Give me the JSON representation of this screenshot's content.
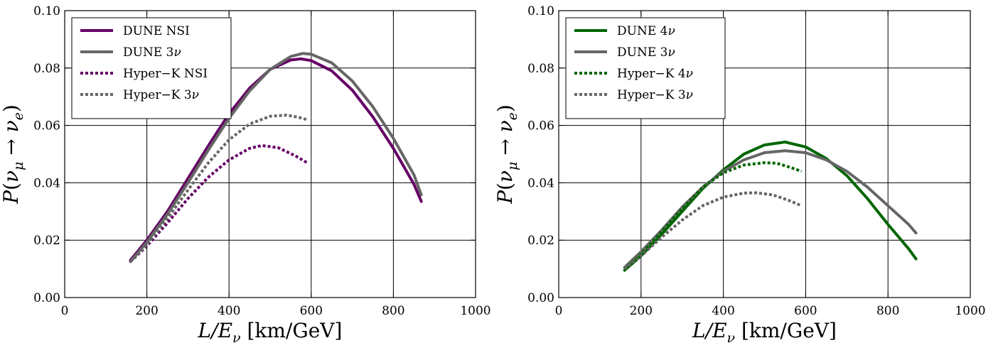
{
  "chart_data": [
    {
      "type": "line",
      "xlabel": "L/E_ν [km/GeV]",
      "ylabel": "P(ν_μ → ν_e)",
      "xlim": [
        0,
        1000
      ],
      "ylim": [
        0,
        0.1
      ],
      "xticks": [
        "0",
        "200",
        "400",
        "600",
        "800",
        "1000"
      ],
      "yticks": [
        "0.00",
        "0.02",
        "0.04",
        "0.06",
        "0.08",
        "0.10"
      ],
      "grid": true,
      "legend_position": "top-left",
      "series": [
        {
          "name": "DUNE NSI",
          "color": "#660066",
          "style": "solid",
          "x": [
            160,
            200,
            250,
            300,
            350,
            400,
            450,
            500,
            550,
            575,
            600,
            650,
            700,
            750,
            800,
            850,
            868
          ],
          "y": [
            0.013,
            0.02,
            0.03,
            0.0415,
            0.053,
            0.064,
            0.073,
            0.0795,
            0.0828,
            0.0832,
            0.0826,
            0.079,
            0.0723,
            0.063,
            0.052,
            0.0395,
            0.0335
          ]
        },
        {
          "name": "DUNE 3ν",
          "color": "#666666",
          "style": "solid",
          "x": [
            160,
            200,
            250,
            300,
            350,
            400,
            450,
            500,
            550,
            580,
            600,
            650,
            700,
            750,
            800,
            850,
            868
          ],
          "y": [
            0.0125,
            0.0193,
            0.029,
            0.04,
            0.0515,
            0.0625,
            0.072,
            0.0795,
            0.084,
            0.0851,
            0.0848,
            0.0818,
            0.0755,
            0.0665,
            0.0555,
            0.0428,
            0.0358
          ]
        },
        {
          "name": "Hyper−K NSI",
          "color": "#660066",
          "style": "dotted",
          "x": [
            160,
            200,
            250,
            300,
            350,
            400,
            450,
            480,
            520,
            560,
            590
          ],
          "y": [
            0.0125,
            0.018,
            0.026,
            0.0345,
            0.042,
            0.048,
            0.052,
            0.053,
            0.0522,
            0.0495,
            0.047
          ]
        },
        {
          "name": "Hyper−K 3ν",
          "color": "#666666",
          "style": "dotted",
          "x": [
            160,
            200,
            250,
            300,
            350,
            400,
            450,
            500,
            540,
            570,
            590
          ],
          "y": [
            0.0125,
            0.0185,
            0.0275,
            0.0375,
            0.047,
            0.055,
            0.0605,
            0.0632,
            0.0636,
            0.0628,
            0.062
          ]
        }
      ]
    },
    {
      "type": "line",
      "xlabel": "L/E_ν [km/GeV]",
      "ylabel": "P(ν_μ → ν_e)",
      "xlim": [
        0,
        1000
      ],
      "ylim": [
        0,
        0.1
      ],
      "xticks": [
        "0",
        "200",
        "400",
        "600",
        "800",
        "1000"
      ],
      "yticks": [
        "0.00",
        "0.02",
        "0.04",
        "0.06",
        "0.08",
        "0.10"
      ],
      "grid": true,
      "legend_position": "top-left",
      "series": [
        {
          "name": "DUNE 4ν",
          "color": "#006600",
          "style": "solid",
          "x": [
            160,
            200,
            250,
            300,
            350,
            400,
            450,
            500,
            550,
            600,
            650,
            700,
            750,
            800,
            850,
            868
          ],
          "y": [
            0.0095,
            0.0145,
            0.022,
            0.03,
            0.038,
            0.0445,
            0.05,
            0.0532,
            0.0542,
            0.0525,
            0.0485,
            0.0425,
            0.0345,
            0.0255,
            0.017,
            0.0135
          ]
        },
        {
          "name": "DUNE 3ν",
          "color": "#666666",
          "style": "solid",
          "x": [
            160,
            200,
            250,
            300,
            350,
            400,
            450,
            500,
            550,
            600,
            650,
            700,
            750,
            800,
            850,
            868
          ],
          "y": [
            0.0105,
            0.016,
            0.0235,
            0.0315,
            0.0385,
            0.044,
            0.048,
            0.0505,
            0.0512,
            0.0505,
            0.048,
            0.044,
            0.0385,
            0.032,
            0.0255,
            0.0225
          ]
        },
        {
          "name": "Hyper−K 4ν",
          "color": "#006600",
          "style": "dotted",
          "x": [
            160,
            200,
            250,
            300,
            350,
            400,
            450,
            500,
            530,
            560,
            590
          ],
          "y": [
            0.01,
            0.015,
            0.023,
            0.031,
            0.0385,
            0.0435,
            0.0462,
            0.047,
            0.0468,
            0.0455,
            0.044
          ]
        },
        {
          "name": "Hyper−K 3ν",
          "color": "#666666",
          "style": "dotted",
          "x": [
            160,
            200,
            250,
            300,
            350,
            400,
            450,
            480,
            520,
            560,
            590
          ],
          "y": [
            0.01,
            0.0145,
            0.021,
            0.027,
            0.032,
            0.035,
            0.0364,
            0.0365,
            0.0358,
            0.0338,
            0.032
          ]
        }
      ]
    }
  ]
}
